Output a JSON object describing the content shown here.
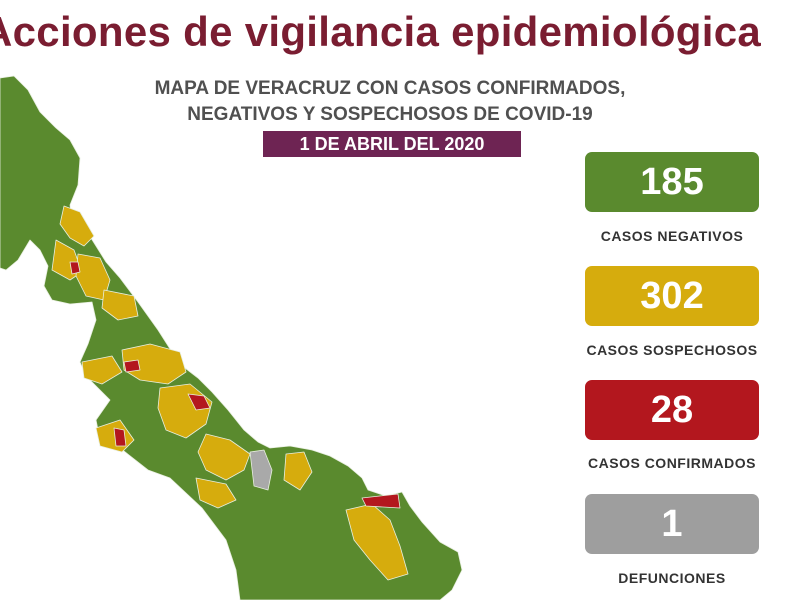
{
  "header": {
    "title": "Acciones de vigilancia epidemiológica",
    "subtitle_line1": "MAPA DE VERACRUZ CON CASOS CONFIRMADOS,",
    "subtitle_line2": "NEGATIVOS Y SOSPECHOSOS DE COVID-19",
    "date": "1 DE ABRIL DEL 2020"
  },
  "stats": [
    {
      "value": "185",
      "label": "CASOS NEGATIVOS",
      "color": "#5a8a2e"
    },
    {
      "value": "302",
      "label": "CASOS SOSPECHOSOS",
      "color": "#d6ac0d"
    },
    {
      "value": "28",
      "label": "CASOS CONFIRMADOS",
      "color": "#b3171e"
    },
    {
      "value": "1",
      "label": "DEFUNCIONES",
      "color": "#9e9e9e"
    }
  ],
  "map": {
    "region": "Veracruz",
    "colors": {
      "negative": "#5a8a2e",
      "suspected": "#d6ac0d",
      "confirmed": "#b3171e",
      "death": "#a9a9a9"
    }
  }
}
